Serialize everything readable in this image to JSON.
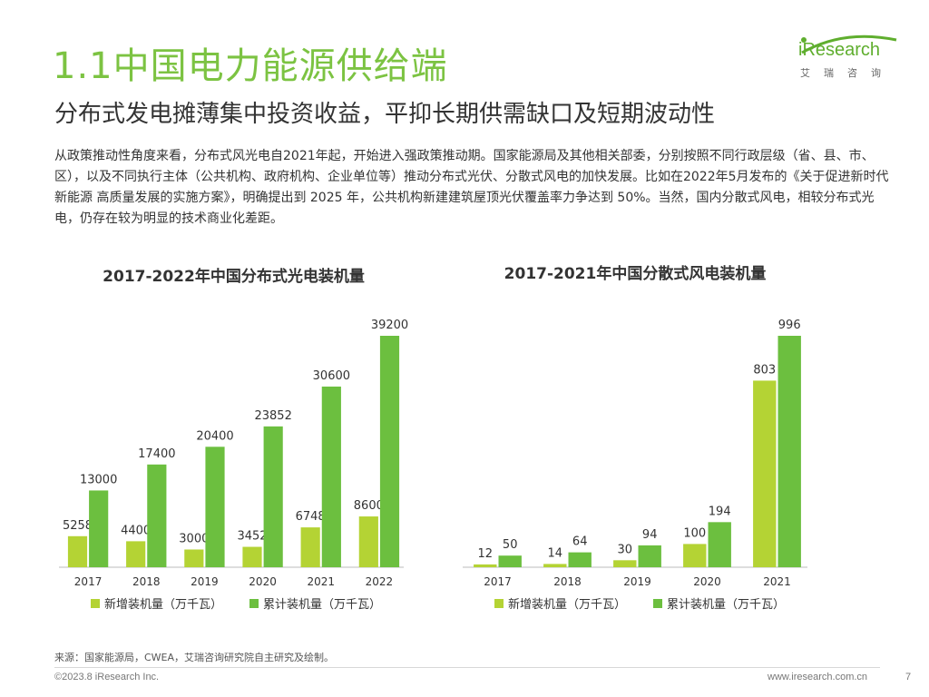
{
  "header": {
    "title": "1.1中国电力能源供给端",
    "subtitle": "分布式发电摊薄集中投资收益，平抑长期供需缺口及短期波动性",
    "logo_text": "iResearch",
    "logo_sub": "艾瑞咨询"
  },
  "body": {
    "paragraph": "从政策推动性角度来看，分布式风光电自2021年起，开始进入强政策推动期。国家能源局及其他相关部委，分别按照不同行政层级（省、县、市、区），以及不同执行主体（公共机构、政府机构、企业单位等）推动分布式光伏、分散式风电的加快发展。比如在2022年5月发布的《关于促进新时代新能源 高质量发展的实施方案》，明确提出到 2025 年，公共机构新建建筑屋顶光伏覆盖率力争达到 50%。当然，国内分散式风电，相较分布式光电，仍存在较为明显的技术商业化差距。"
  },
  "colors": {
    "accent": "#7cc342",
    "new_series": "#b4d334",
    "cumulative_series": "#6cbf3f"
  },
  "chart_data": [
    {
      "type": "bar",
      "title": "2017-2022年中国分布式光电装机量",
      "categories": [
        "2017",
        "2018",
        "2019",
        "2020",
        "2021",
        "2022"
      ],
      "series": [
        {
          "name": "新增装机量（万千瓦）",
          "values": [
            5258,
            4400,
            3000,
            3452,
            6748,
            8600
          ]
        },
        {
          "name": "累计装机量（万千瓦）",
          "values": [
            13000,
            17400,
            20400,
            23852,
            30600,
            39200
          ]
        }
      ],
      "ylim": [
        0,
        39200
      ],
      "grid": false,
      "legend": "bottom"
    },
    {
      "type": "bar",
      "title": "2017-2021年中国分散式风电装机量",
      "categories": [
        "2017",
        "2018",
        "2019",
        "2020",
        "2021"
      ],
      "series": [
        {
          "name": "新增装机量（万千瓦）",
          "values": [
            12,
            14,
            30,
            100,
            803
          ]
        },
        {
          "name": "累计装机量（万千瓦）",
          "values": [
            50,
            64,
            94,
            194,
            996
          ]
        }
      ],
      "ylim": [
        0,
        996
      ],
      "grid": false,
      "legend": "bottom"
    }
  ],
  "footer": {
    "source": "来源：国家能源局，CWEA，艾瑞咨询研究院自主研究及绘制。",
    "copyright": "©2023.8 iResearch Inc.",
    "website": "www.iresearch.com.cn",
    "page": "7"
  }
}
